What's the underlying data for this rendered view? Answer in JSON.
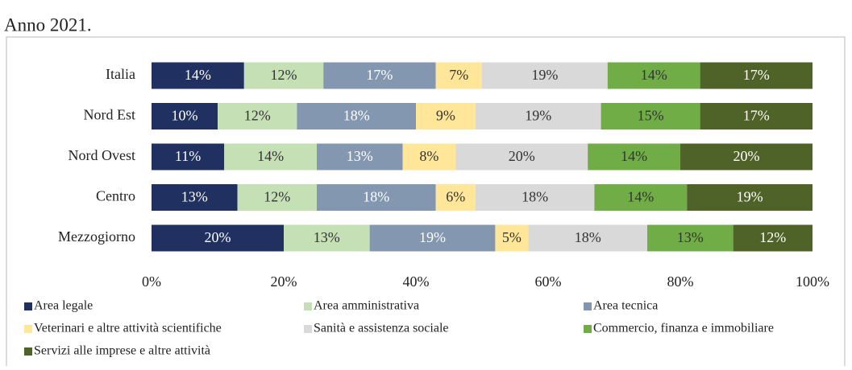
{
  "chart_data": {
    "type": "stacked-barh",
    "title": "Anno 2021.",
    "categories": [
      "Italia",
      "Nord Est",
      "Nord Ovest",
      "Centro",
      "Mezzogiorno"
    ],
    "series": [
      {
        "name": "Area legale",
        "color": "#203060",
        "label_color": "#ffffff",
        "values": [
          14,
          10,
          11,
          13,
          20
        ],
        "value_labels": [
          "14%",
          "10%",
          "11%",
          "13%",
          "20%"
        ]
      },
      {
        "name": "Area amministrativa",
        "color": "#c5e0b4",
        "label_color": "#333333",
        "values": [
          12,
          12,
          14,
          12,
          13
        ],
        "value_labels": [
          "12%",
          "12%",
          "14%",
          "12%",
          "13%"
        ]
      },
      {
        "name": "Area tecnica",
        "color": "#8497b0",
        "label_color": "#ffffff",
        "values": [
          17,
          18,
          13,
          18,
          19
        ],
        "value_labels": [
          "17%",
          "18%",
          "13%",
          "18%",
          "19%"
        ]
      },
      {
        "name": "Veterinari e altre attività scientifiche",
        "color": "#ffe699",
        "label_color": "#333333",
        "values": [
          7,
          9,
          8,
          6,
          5
        ],
        "value_labels": [
          "7%",
          "9%",
          "8%",
          "6%",
          "5%"
        ]
      },
      {
        "name": "Sanità e assistenza sociale",
        "color": "#d9d9d9",
        "label_color": "#333333",
        "values": [
          19,
          19,
          20,
          18,
          18
        ],
        "value_labels": [
          "19%",
          "19%",
          "20%",
          "18%",
          "18%"
        ]
      },
      {
        "name": "Commercio, finanza e immobiliare",
        "color": "#70ad47",
        "label_color": "#333333",
        "values": [
          14,
          15,
          14,
          14,
          13
        ],
        "value_labels": [
          "14%",
          "15%",
          "14%",
          "14%",
          "13%"
        ]
      },
      {
        "name": "Servizi alle imprese e altre attività",
        "color": "#4f6228",
        "label_color": "#ffffff",
        "values": [
          17,
          17,
          20,
          19,
          12
        ],
        "value_labels": [
          "17%",
          "17%",
          "20%",
          "19%",
          "12%"
        ]
      }
    ],
    "xlim": [
      0,
      100
    ],
    "xticks": [
      {
        "value": 0,
        "label": "0%"
      },
      {
        "value": 20,
        "label": "20%"
      },
      {
        "value": 40,
        "label": "40%"
      },
      {
        "value": 60,
        "label": "60%"
      },
      {
        "value": 80,
        "label": "80%"
      },
      {
        "value": 100,
        "label": "100%"
      }
    ]
  }
}
